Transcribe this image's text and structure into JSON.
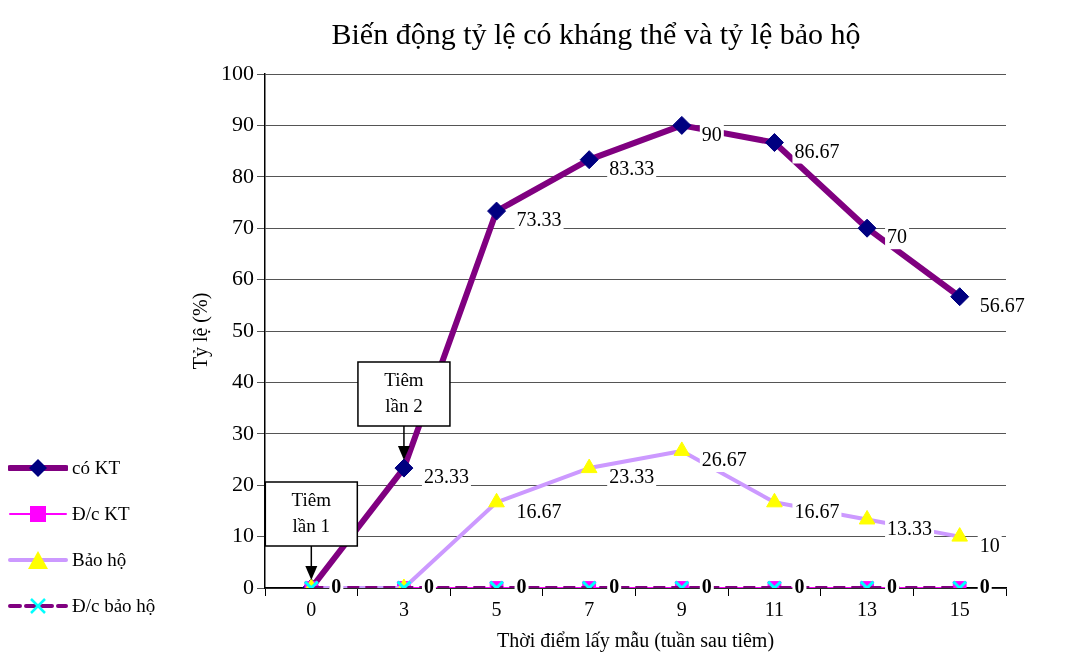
{
  "chart_data": {
    "type": "line",
    "title": "Biến động tỷ lệ có kháng thể và tỷ lệ bảo hộ",
    "xlabel": "Thời điểm lấy mẫu (tuần sau tiêm)",
    "ylabel": "Tỷ lệ (%)",
    "categories": [
      "0",
      "3",
      "5",
      "7",
      "9",
      "11",
      "13",
      "15"
    ],
    "series": [
      {
        "name": "có KT",
        "color": "#800080",
        "colors": [
          "#000080",
          "#000080",
          "#000080",
          "#000080",
          "#000080",
          "#000080",
          "#000080",
          "#000080"
        ],
        "marker": "diamond",
        "values": [
          0,
          23.33,
          73.33,
          83.33,
          90,
          86.67,
          70,
          56.67
        ],
        "value_labels": [
          null,
          "23.33",
          "73.33",
          "83.33",
          "90",
          "86.67",
          "70",
          "56.67"
        ]
      },
      {
        "name": "Đ/c KT",
        "color": "#ff00ff",
        "marker": "square",
        "values": [
          0,
          0,
          0,
          0,
          0,
          0,
          0,
          0
        ],
        "value_labels": [
          "0",
          "0",
          "0",
          "0",
          "0",
          "0",
          "0",
          "0"
        ]
      },
      {
        "name": "Bảo hộ",
        "color": "#cc99ff",
        "colors": [
          "#ffff00",
          "#ffff00",
          "#ffff00",
          "#ffff00",
          "#ffff00",
          "#ffff00",
          "#ffff00",
          "#ffff00"
        ],
        "marker": "triangle",
        "values": [
          0,
          0,
          16.67,
          23.33,
          26.67,
          16.67,
          13.33,
          10
        ],
        "value_labels": [
          null,
          null,
          "16.67",
          "23.33",
          "26.67",
          "16.67",
          "13.33",
          "10"
        ]
      },
      {
        "name": "Đ/c bảo hộ",
        "color": "#800080",
        "colors": [
          "#00ffff",
          "#00ffff",
          "#00ffff",
          "#00ffff",
          "#00ffff",
          "#00ffff",
          "#00ffff",
          "#00ffff"
        ],
        "marker": "cross",
        "line_style": "dashed",
        "values": [
          0,
          0,
          0,
          0,
          0,
          0,
          0,
          0
        ]
      }
    ],
    "ylim": [
      0,
      100
    ],
    "yticks": [
      0,
      10,
      20,
      30,
      40,
      50,
      60,
      70,
      80,
      90,
      100
    ],
    "grid": "y",
    "legend": "left",
    "annotations": [
      {
        "text": "Tiêm lần 1",
        "x": "0",
        "y": 0
      },
      {
        "text": "Tiêm lần 2",
        "x": "3",
        "y": 23.33
      }
    ]
  }
}
